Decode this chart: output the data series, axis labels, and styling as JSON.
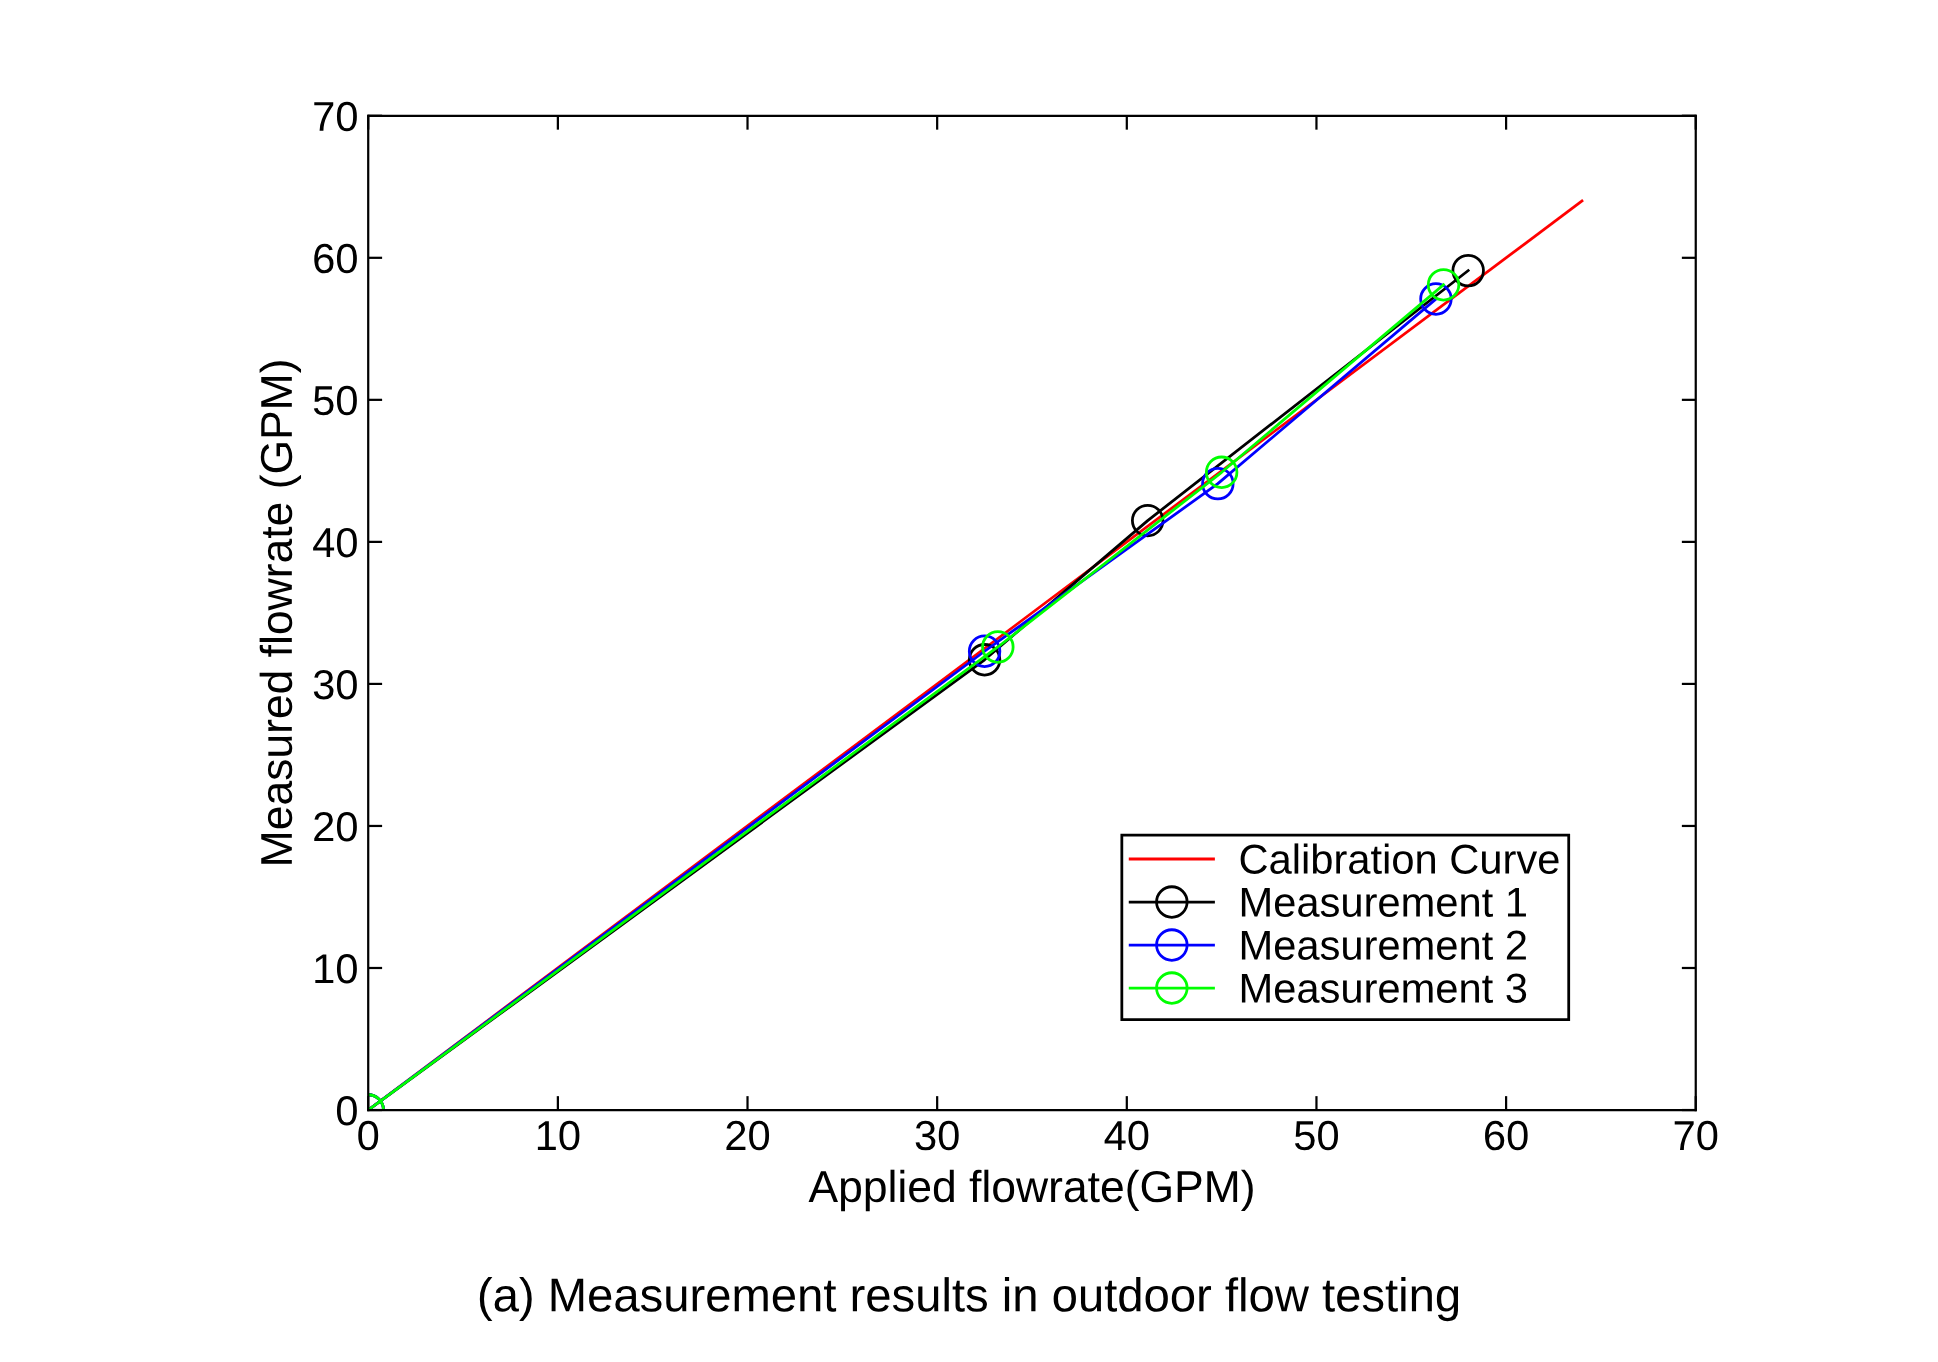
{
  "chart_data": {
    "type": "line",
    "xlabel": "Applied flowrate(GPM)",
    "ylabel": "Measured flowrate (GPM)",
    "annotations": [
      "(a) Measurement results in outdoor flow testing"
    ],
    "xlim": [
      0,
      70
    ],
    "ylim": [
      0,
      70
    ],
    "xticks": [
      0,
      10,
      20,
      30,
      40,
      50,
      60,
      70
    ],
    "yticks": [
      0,
      10,
      20,
      30,
      40,
      50,
      60,
      70
    ],
    "grid": false,
    "legend": "bottom right",
    "series": [
      {
        "name": "Calibration Curve",
        "color": "#ff0000",
        "x": [
          0,
          64
        ],
        "values": [
          0,
          64
        ],
        "marker": "none"
      },
      {
        "name": "Measurement 1",
        "color": "#000000",
        "x": [
          0,
          32.5,
          41.1,
          58.0
        ],
        "values": [
          0,
          31.7,
          41.5,
          59.1
        ],
        "marker": "circle"
      },
      {
        "name": "Measurement 2",
        "color": "#0000ff",
        "x": [
          0,
          32.5,
          44.8,
          56.3
        ],
        "values": [
          0,
          32.3,
          44.1,
          57.1
        ],
        "marker": "circle"
      },
      {
        "name": "Measurement 3",
        "color": "#00ff00",
        "x": [
          0,
          33.2,
          45.0,
          56.7
        ],
        "values": [
          0,
          32.6,
          44.9,
          58.1
        ],
        "marker": "circle"
      }
    ]
  }
}
